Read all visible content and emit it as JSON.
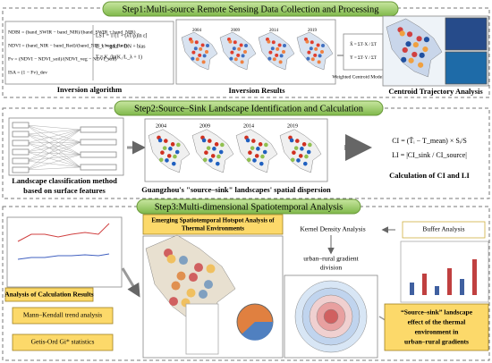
{
  "steps": [
    {
      "title": "Step1:Multi-source Remote Sensing Data Collection and Processing"
    },
    {
      "title": "Step2:Source–Sink Landscape Identification and Calculation"
    },
    {
      "title": "Step3:Multi-dimensional Spatiotemporal Analysis"
    }
  ],
  "years": [
    "2004",
    "2009",
    "2014",
    "2019"
  ],
  "step1": {
    "formulas_left": [
      "NDBI = (band_SWIR − band_NIR)/(band_SWIR + band_NIR)",
      "NDVI = (band_NIR − band_Red)/(band_NIR + band_Red)",
      "Fv = (NDVI − NDVI_soil)/(NDVI_veg − NDVI_soil)",
      "ISA = (1 − Fv)_dev"
    ],
    "formulas_right": [
      "LST = T/[1 + (λT/ρ)ln ε]",
      "L_λ = gain × DN + bias",
      "T = K₂/ln(K₁/L_λ + 1)"
    ],
    "centroid_formulas": [
      "X̄ = ΣT·X / ΣT",
      "Ȳ = ΣT·Y / ΣT"
    ],
    "inversion_algorithm": "Inversion algorithm",
    "inversion_results": "Inversion Results",
    "weighted_centroid": "Weighted Centroid Model",
    "centroid_trajectory": "Centroid Trajectory Analysis"
  },
  "step2": {
    "classification": [
      "Landscape classification method",
      "based on surface features"
    ],
    "dispersion": "Guangzhou's \"source–sink\" landscapes' spatial dispersion",
    "formulas": [
      "CI = (T̄ᵢ − T_mean) × Sᵢ/S",
      "LI = |CI_sink / CI_source|"
    ],
    "calc": "Calculation of CI and LI"
  },
  "step3": {
    "analysis_results": "Analysis of Calculation Results",
    "mann_kendall": "Mann–Kendall trend analysis",
    "getis": "Getis-Ord Gi* statistics",
    "hotspot": [
      "Emerging Spatiotemporal Hotspot Analysis of",
      "Thermal Environments"
    ],
    "kernel": "Kernel Density Analysis",
    "buffer": "Buffer Analysis",
    "gradient": [
      "urban–rural gradient",
      "division"
    ],
    "effect": [
      "“Source–sink” landscape",
      "effect of the thermal",
      "environment in",
      "urban–rural gradients"
    ]
  }
}
